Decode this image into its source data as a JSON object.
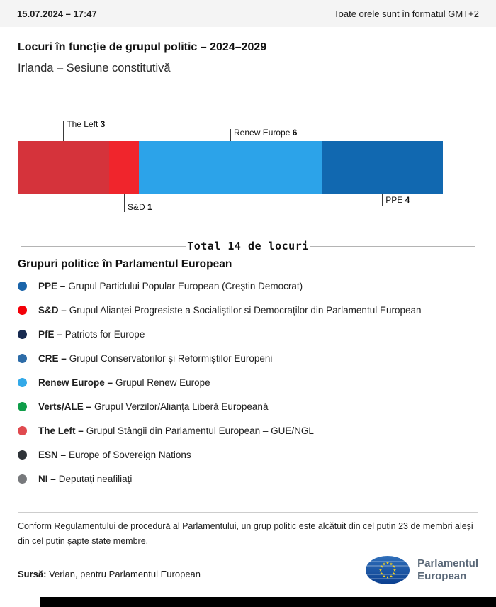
{
  "header": {
    "datetime": "15.07.2024 – 17:47",
    "timezone_note": "Toate orele sunt în formatul GMT+2"
  },
  "page": {
    "title": "Locuri în funcție de grupul politic – 2024–2029",
    "subtitle": "Irlanda – Sesiune constitutivă"
  },
  "chart_data": {
    "type": "bar",
    "title": "Locuri în funcție de grupul politic – 2024–2029",
    "region": "Irlanda – Sesiune constitutivă",
    "total_seats": 14,
    "total_label": "Total 14 de locuri",
    "series": [
      {
        "name": "The Left",
        "value": 3,
        "color": "#d5333b",
        "label_side": "top",
        "label_tier": 2
      },
      {
        "name": "S&D",
        "value": 1,
        "color": "#f0252c",
        "label_side": "bottom",
        "label_tier": 2
      },
      {
        "name": "Renew Europe",
        "value": 6,
        "color": "#2ca3e9",
        "label_side": "top",
        "label_tier": 1
      },
      {
        "name": "PPE",
        "value": 4,
        "color": "#1168b0",
        "label_side": "bottom",
        "label_tier": 1
      }
    ]
  },
  "legend": {
    "title": "Grupuri politice în Parlamentul European",
    "items": [
      {
        "abbr": "PPE –",
        "desc": "Grupul Partidului Popular European (Creștin Democrat)",
        "color": "#1a64a9"
      },
      {
        "abbr": "S&D –",
        "desc": "Grupul Alianței Progresiste a Socialiștilor si Democraților din Parlamentul European",
        "color": "#f30008"
      },
      {
        "abbr": "PfE –",
        "desc": "Patriots for Europe",
        "color": "#172a50"
      },
      {
        "abbr": "CRE –",
        "desc": "Grupul Conservatorilor și Reformiștilor Europeni",
        "color": "#2d6ca8"
      },
      {
        "abbr": "Renew Europe –",
        "desc": "Grupul Renew Europe",
        "color": "#33a9e8"
      },
      {
        "abbr": "Verts/ALE –",
        "desc": "Grupul Verzilor/Alianța Liberă Europeană",
        "color": "#0f9d49"
      },
      {
        "abbr": "The Left –",
        "desc": "Grupul Stângii din Parlamentul European – GUE/NGL",
        "color": "#e04a4f"
      },
      {
        "abbr": "ESN –",
        "desc": "Europe of Sovereign Nations",
        "color": "#2e3338"
      },
      {
        "abbr": "NI –",
        "desc": "Deputați neafiliați",
        "color": "#77797c"
      }
    ]
  },
  "footnote": "Conform Regulamentului de procedură al Parlamentului, un grup politic este alcătuit din cel puțin 23 de membri aleși din cel puțin șapte state membre.",
  "source": {
    "label": "Sursă:",
    "text": "Verian, pentru Parlamentul European"
  },
  "logo": {
    "line1": "Parlamentul",
    "line2": "European"
  }
}
